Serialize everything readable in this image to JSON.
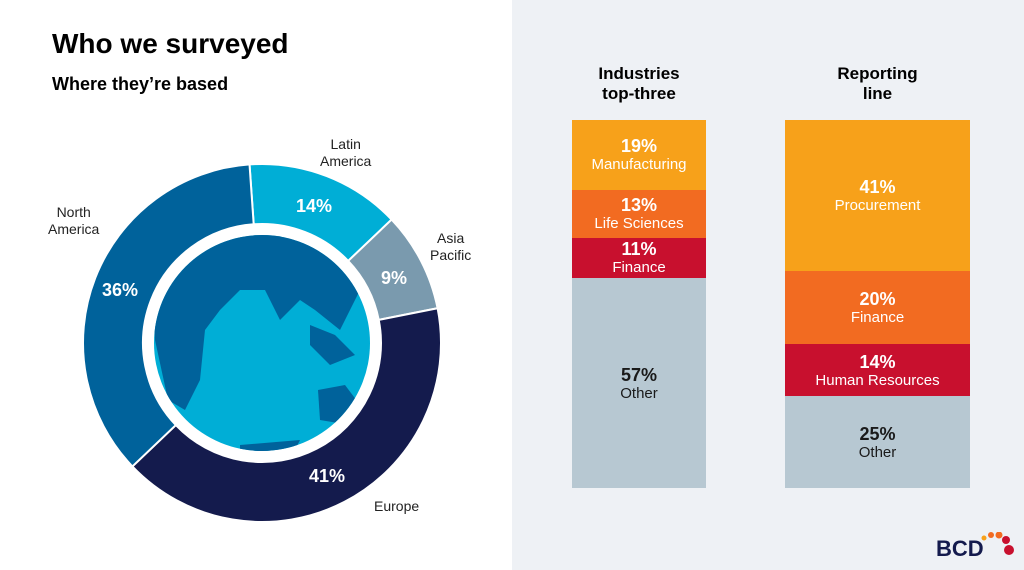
{
  "title": "Who we surveyed",
  "subtitle": "Where they’re based",
  "chart_data": [
    {
      "type": "pie",
      "subtype": "donut",
      "title": "Where they’re based",
      "categories": [
        "Latin America",
        "Asia Pacific",
        "Europe",
        "North America"
      ],
      "values": [
        14,
        9,
        41,
        36
      ],
      "labels": [
        "14%",
        "9%",
        "41%",
        "36%"
      ],
      "colors": [
        "#00aed6",
        "#7a9aae",
        "#141b4d",
        "#00629b"
      ]
    },
    {
      "type": "bar",
      "subtype": "stacked-100",
      "title": "Industries top-three",
      "categories": [
        "Manufacturing",
        "Life Sciences",
        "Finance",
        "Other"
      ],
      "values": [
        19,
        13,
        11,
        57
      ],
      "labels": [
        "19%",
        "13%",
        "11%",
        "57%"
      ],
      "colors": [
        "#f7a11a",
        "#f26b21",
        "#c8102e",
        "#b7c8d2"
      ]
    },
    {
      "type": "bar",
      "subtype": "stacked-100",
      "title": "Reporting line",
      "categories": [
        "Procurement",
        "Finance",
        "Human Resources",
        "Other"
      ],
      "values": [
        41,
        20,
        14,
        25
      ],
      "labels": [
        "41%",
        "20%",
        "14%",
        "25%"
      ],
      "colors": [
        "#f7a11a",
        "#f26b21",
        "#c8102e",
        "#b7c8d2"
      ]
    }
  ],
  "col1_title": [
    "Industries",
    "top-three"
  ],
  "col2_title": [
    "Reporting",
    "line"
  ],
  "donut_names": {
    "la": [
      "Latin",
      "America"
    ],
    "ap": [
      "Asia",
      "Pacific"
    ],
    "eu": "Europe",
    "na": [
      "North",
      "America"
    ]
  },
  "logo": "BCD"
}
